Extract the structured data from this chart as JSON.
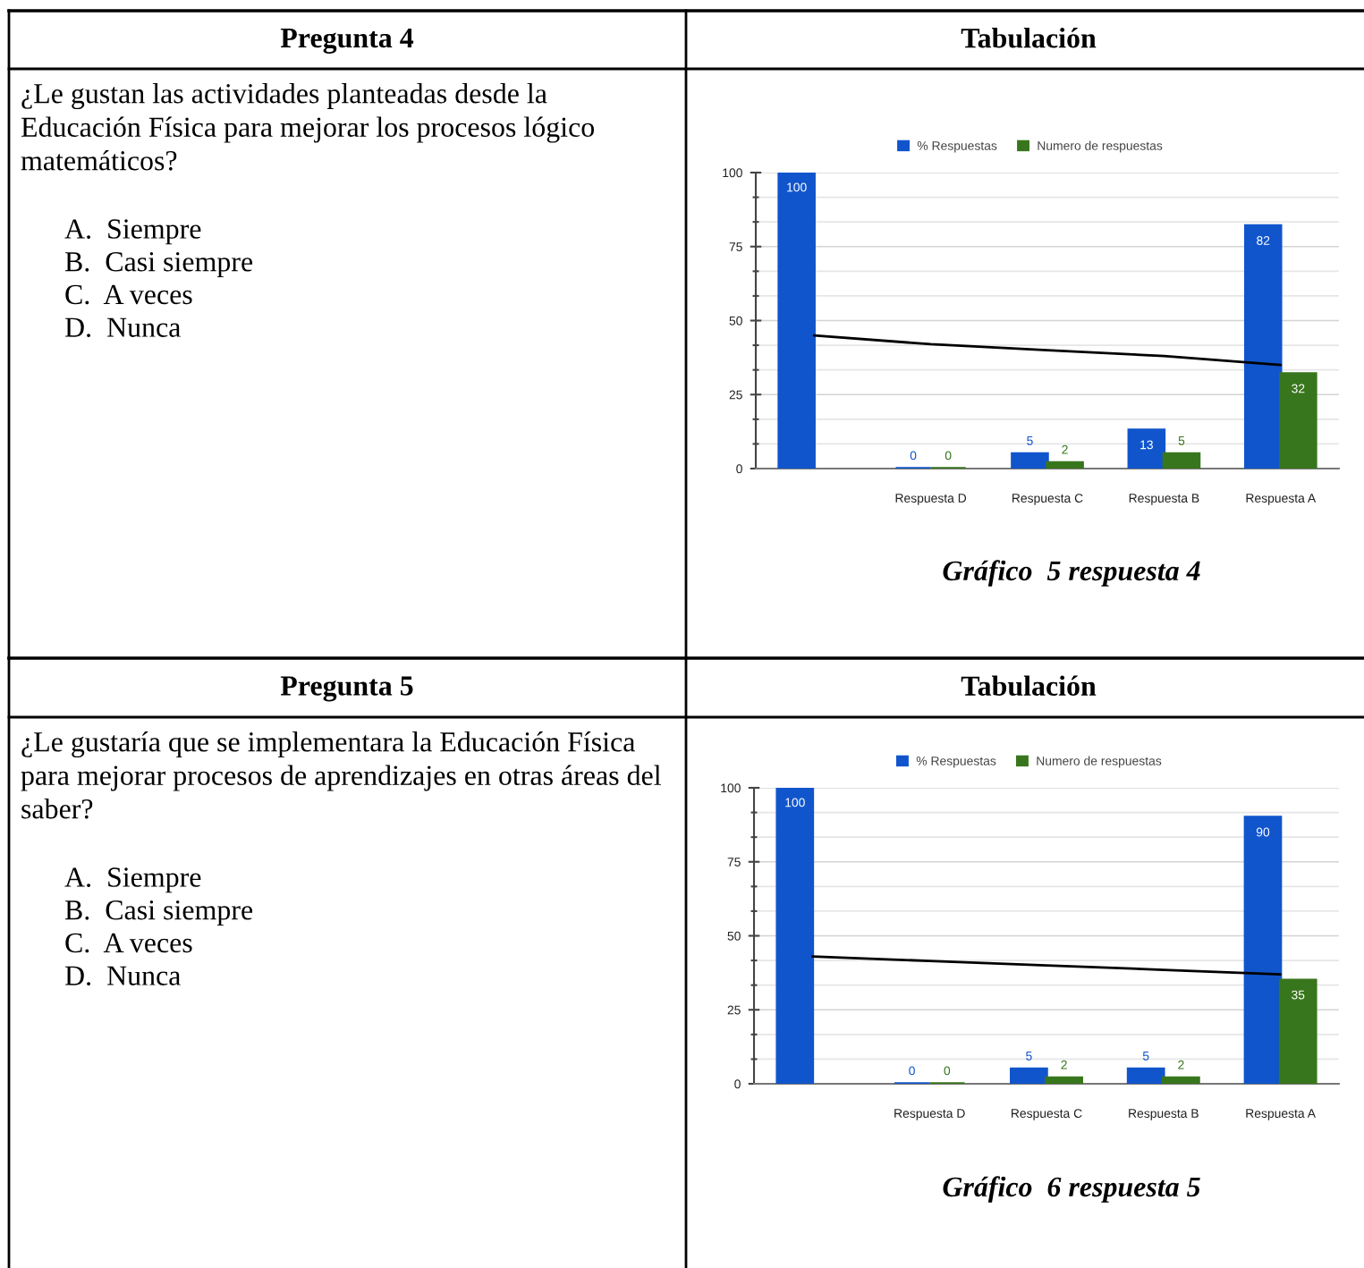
{
  "chart_data": [
    {
      "type": "bar",
      "title": "Tabulación",
      "categories": [
        null,
        "Respuesta D",
        "Respuesta C",
        "Respuesta B",
        "Respuesta A"
      ],
      "series": [
        {
          "name": "% Respuestas",
          "color": "#1155cc",
          "values": [
            100,
            0,
            5,
            13,
            82
          ],
          "value_labels": [
            "100",
            "0",
            "5",
            "13",
            "82"
          ]
        },
        {
          "name": "Numero de respuestas",
          "color": "#38761d",
          "values": [
            null,
            0,
            2,
            5,
            32
          ],
          "value_labels": [
            null,
            "0",
            "2",
            "5",
            "32"
          ]
        },
        {
          "type": "line",
          "color": "#000000",
          "values": [
            45,
            42,
            40,
            38,
            35
          ]
        }
      ],
      "ylim": [
        0,
        100
      ],
      "yticks": [
        0,
        25,
        50,
        75,
        100
      ],
      "grid": "y",
      "legend": "top",
      "annotations": [
        "Pregunta 4",
        "¿Le gustan las actividades planteadas desde la Educación Física para mejorar los procesos lógico matemáticos?",
        "A. Siempre",
        "B. Casi siempre",
        "C. A veces",
        "D. Nunca",
        "Gráfico  5 respuesta 4"
      ]
    },
    {
      "type": "bar",
      "title": "Tabulación",
      "categories": [
        null,
        "Respuesta D",
        "Respuesta C",
        "Respuesta B",
        "Respuesta A"
      ],
      "series": [
        {
          "name": "% Respuestas",
          "color": "#1155cc",
          "values": [
            100,
            0,
            5,
            5,
            90
          ],
          "value_labels": [
            "100",
            "0",
            "5",
            "5",
            "90"
          ]
        },
        {
          "name": "Numero de respuestas",
          "color": "#38761d",
          "values": [
            null,
            0,
            2,
            2,
            35
          ],
          "value_labels": [
            null,
            "0",
            "2",
            "2",
            "35"
          ]
        },
        {
          "type": "line",
          "color": "#000000",
          "values": [
            43,
            41.5,
            40,
            38.5,
            37
          ]
        }
      ],
      "ylim": [
        0,
        100
      ],
      "yticks": [
        0,
        25,
        50,
        75,
        100
      ],
      "grid": "y",
      "legend": "top",
      "annotations": [
        "Pregunta 5",
        "¿Le gustaría que se implementara la Educación Física para mejorar procesos de aprendizajes en otras áreas del saber?",
        "A. Siempre",
        "B. Casi siempre",
        "C. A veces",
        "D. Nunca",
        "Gráfico  6 respuesta 5"
      ]
    }
  ]
}
